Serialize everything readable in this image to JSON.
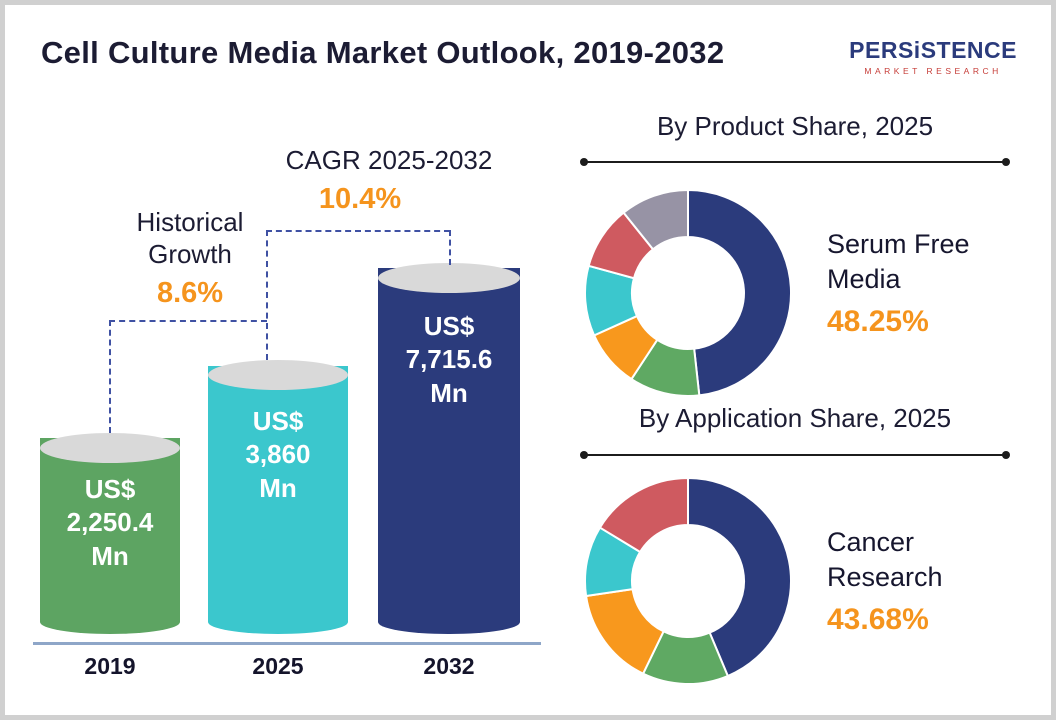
{
  "header": {
    "title": "Cell Culture Media Market Outlook, 2019-2032",
    "logo": {
      "name": "PERSiSTENCE",
      "tagline": "MARKET RESEARCH"
    }
  },
  "bar_section": {
    "bars": [
      {
        "year": "2019",
        "currency": "US$",
        "value": "2,250.4",
        "unit": "Mn",
        "color": "#5da462"
      },
      {
        "year": "2025",
        "currency": "US$",
        "value": "3,860",
        "unit": "Mn",
        "color": "#3bc7cd"
      },
      {
        "year": "2032",
        "currency": "US$",
        "value": "7,715.6",
        "unit": "Mn",
        "color": "#2b3b7c"
      }
    ],
    "historical": {
      "label_line1": "Historical",
      "label_line2": "Growth",
      "value": "8.6%"
    },
    "cagr": {
      "label": "CAGR 2025-2032",
      "value": "10.4%"
    }
  },
  "product_section": {
    "title": "By Product Share, 2025",
    "highlight_label": "Serum Free Media",
    "highlight_value": "48.25%"
  },
  "application_section": {
    "title": "By Application Share, 2025",
    "highlight_label": "Cancer Research",
    "highlight_value": "43.68%"
  },
  "chart_data": [
    {
      "type": "bar",
      "title": "Cell Culture Media Market Outlook, 2019-2032",
      "categories": [
        "2019",
        "2025",
        "2032"
      ],
      "values": [
        2250.4,
        3860,
        7715.6
      ],
      "unit": "US$ Mn",
      "annotations": {
        "historical_growth_2019_2025": "8.6%",
        "cagr_2025_2032": "10.4%"
      },
      "bar_colors": [
        "#5da462",
        "#3bc7cd",
        "#2b3b7c"
      ]
    },
    {
      "type": "pie",
      "subtype": "donut",
      "title": "By Product Share, 2025",
      "highlighted": {
        "label": "Serum Free Media",
        "value": 48.25
      },
      "segments": [
        {
          "label": "Serum Free Media",
          "value": 48.25,
          "color": "#2b3b7c"
        },
        {
          "value": 11,
          "color": "#5fa963"
        },
        {
          "value": 9,
          "color": "#f8981d"
        },
        {
          "value": 11,
          "color": "#3bc7cd"
        },
        {
          "value": 10,
          "color": "#cf5a60"
        },
        {
          "value": 10.75,
          "color": "#9793a5"
        }
      ]
    },
    {
      "type": "pie",
      "subtype": "donut",
      "title": "By Application Share, 2025",
      "highlighted": {
        "label": "Cancer Research",
        "value": 43.68
      },
      "segments": [
        {
          "label": "Cancer Research",
          "value": 43.68,
          "color": "#2b3b7c"
        },
        {
          "value": 13.5,
          "color": "#5fa963"
        },
        {
          "value": 15.5,
          "color": "#f8981d"
        },
        {
          "value": 11,
          "color": "#3bc7cd"
        },
        {
          "value": 16.32,
          "color": "#cf5a60"
        }
      ]
    }
  ]
}
